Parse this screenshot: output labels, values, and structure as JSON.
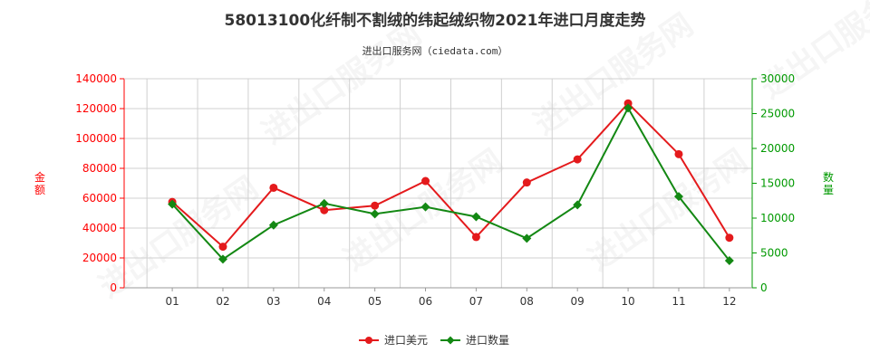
{
  "title": "58013100化纤制不割绒的纬起绒织物2021年进口月度走势",
  "subtitle": "进出口服务网（ciedata.com）",
  "watermark": "进出口服务网",
  "colors": {
    "left": "#ff0000",
    "right": "#009900",
    "series1": "#e41a1c",
    "series2": "#138813"
  },
  "chart_data": {
    "type": "line",
    "categories": [
      "01",
      "02",
      "03",
      "04",
      "05",
      "06",
      "07",
      "08",
      "09",
      "10",
      "11",
      "12"
    ],
    "y_left": {
      "label": "金额",
      "min": 0,
      "max": 140000,
      "ticks": [
        "0",
        "20000",
        "40000",
        "60000",
        "80000",
        "100000",
        "120000",
        "140000"
      ]
    },
    "y_right": {
      "label": "数量",
      "min": 0,
      "max": 30000,
      "ticks": [
        "0",
        "5000",
        "10000",
        "15000",
        "20000",
        "25000",
        "30000"
      ]
    },
    "series": [
      {
        "name": "进口美元",
        "axis": "left",
        "marker": "circle",
        "values": [
          57500,
          27500,
          67000,
          52000,
          55000,
          71500,
          34000,
          70500,
          86000,
          123500,
          89500,
          33500
        ]
      },
      {
        "name": "进口数量",
        "axis": "right",
        "marker": "diamond",
        "values": [
          12000,
          4100,
          9000,
          12100,
          10600,
          11600,
          10200,
          7100,
          11900,
          25800,
          13100,
          3900
        ]
      }
    ],
    "grid": true,
    "legend_position": "bottom"
  }
}
